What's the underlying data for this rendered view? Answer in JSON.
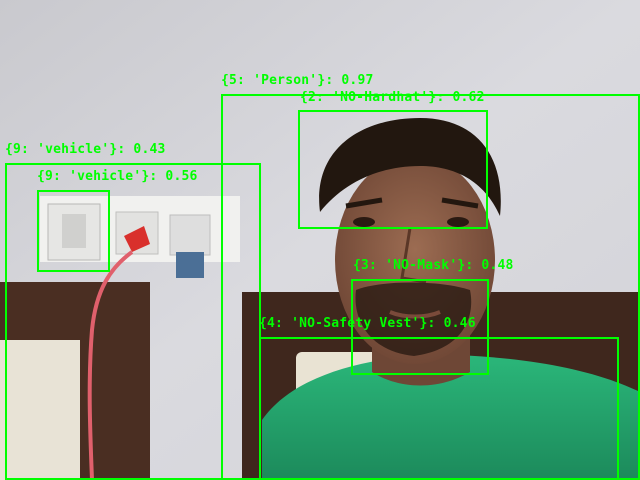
{
  "image": {
    "description_colors": {
      "box": "#00ff00",
      "wall": "#d4d4d9",
      "shirt": "#23a06a"
    }
  },
  "detections": [
    {
      "label": "{5: 'Person'}: 0.97"
    },
    {
      "label": "{2: 'NO-Hardhat'}: 0.62"
    },
    {
      "label": "{9: 'vehicle'}: 0.43"
    },
    {
      "label": "{9: 'vehicle'}: 0.56"
    },
    {
      "label": "{3: 'NO-Mask'}: 0.48"
    },
    {
      "label": "{4: 'NO-Safety Vest'}: 0.46"
    }
  ]
}
